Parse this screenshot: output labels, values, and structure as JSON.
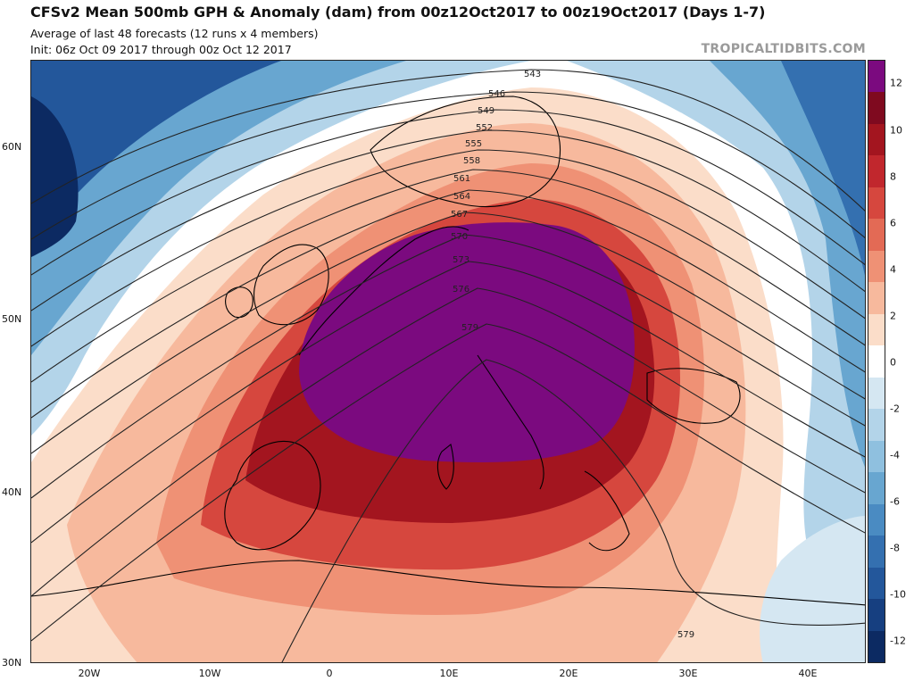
{
  "header": {
    "title": "CFSv2 Mean 500mb GPH & Anomaly (dam) from 00z12Oct2017 to 00z19Oct2017 (Days 1-7)",
    "subtitle1": "Average of last 48 forecasts (12 runs x 4 members)",
    "subtitle2": "Init: 06z Oct 09 2017 through 00z Oct 12 2017",
    "watermark": "TROPICALTIDBITS.COM"
  },
  "axes": {
    "lat_labels": [
      "60N",
      "50N",
      "40N",
      "30N"
    ],
    "lon_labels": [
      "20W",
      "10W",
      "0",
      "10E",
      "20E",
      "30E",
      "40E"
    ]
  },
  "contours": {
    "labels": [
      "543",
      "546",
      "549",
      "552",
      "555",
      "558",
      "561",
      "564",
      "567",
      "570",
      "573",
      "576",
      "579",
      "579"
    ]
  },
  "colorbar": {
    "labels": [
      "12",
      "10",
      "8",
      "6",
      "4",
      "2",
      "0",
      "-2",
      "-4",
      "-6",
      "-8",
      "-10",
      "-12"
    ],
    "colors": [
      "#7b0a7f",
      "#7f0a1f",
      "#a3151f",
      "#c1272d",
      "#d6473e",
      "#e36a55",
      "#ef9175",
      "#f7b99d",
      "#fbddc9",
      "#ffffff",
      "#d5e7f2",
      "#b3d4e9",
      "#8fc0df",
      "#68a6d0",
      "#4a8bc2",
      "#3470b0",
      "#23579b",
      "#163f80",
      "#0c2a62"
    ]
  }
}
